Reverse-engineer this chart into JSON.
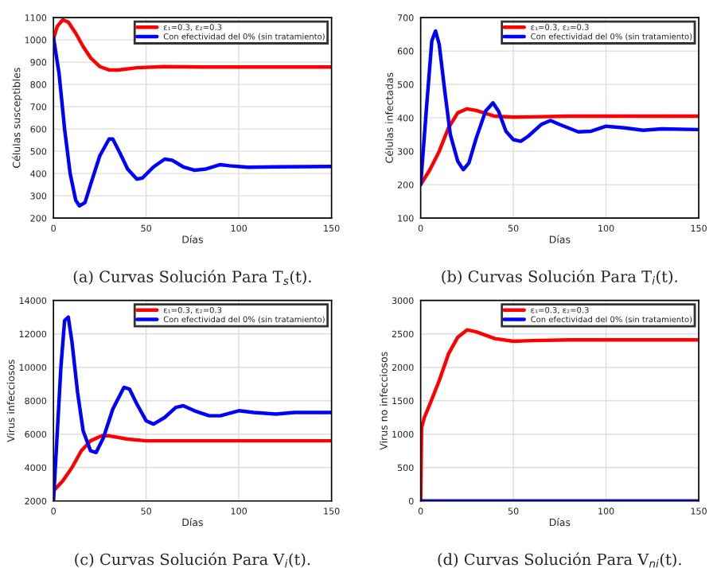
{
  "chart_data": [
    {
      "type": "line",
      "title": "(a) Curvas Solución Para T$_{s}$(t).",
      "xlabel": "Días",
      "ylabel": "Células susceptibles",
      "xlim": [
        0,
        150
      ],
      "xticks": [
        0,
        50,
        100,
        150
      ],
      "ylim": [
        200,
        1100
      ],
      "yticks": [
        200,
        300,
        400,
        500,
        600,
        700,
        800,
        900,
        1000,
        1100
      ],
      "grid": true,
      "legend": "top right",
      "marker": "none",
      "line_style": "solid",
      "series": [
        {
          "name": "ε₁=0.3, ε₂=0.3",
          "color": "#ff0000",
          "x": [
            0,
            2,
            5,
            8,
            12,
            16,
            20,
            25,
            30,
            35,
            45,
            60,
            80,
            150
          ],
          "values": [
            1005,
            1060,
            1090,
            1080,
            1030,
            970,
            920,
            880,
            865,
            865,
            875,
            880,
            878,
            878
          ]
        },
        {
          "name": "Con efectividad del 0% (sin tratamiento)",
          "color": "#0000ff",
          "x": [
            0,
            3,
            6,
            9,
            12,
            14,
            17,
            20,
            25,
            30,
            32,
            36,
            40,
            45,
            48,
            54,
            60,
            64,
            70,
            76,
            82,
            90,
            95,
            105,
            120,
            150
          ],
          "values": [
            1010,
            850,
            600,
            400,
            280,
            255,
            270,
            350,
            480,
            555,
            555,
            490,
            420,
            375,
            380,
            430,
            465,
            460,
            430,
            415,
            420,
            440,
            435,
            428,
            430,
            432
          ]
        }
      ]
    },
    {
      "type": "line",
      "title": "(b) Curvas Solución Para T$_{i}$(t).",
      "xlabel": "Días",
      "ylabel": "Células infectadas",
      "xlim": [
        0,
        150
      ],
      "xticks": [
        0,
        50,
        100,
        150
      ],
      "ylim": [
        100,
        700
      ],
      "yticks": [
        100,
        200,
        300,
        400,
        500,
        600,
        700
      ],
      "grid": true,
      "legend": "top right",
      "marker": "none",
      "line_style": "solid",
      "series": [
        {
          "name": "ε₁=0.3, ε₂=0.3",
          "color": "#ff0000",
          "x": [
            0,
            5,
            10,
            15,
            20,
            25,
            30,
            40,
            50,
            60,
            80,
            150
          ],
          "values": [
            200,
            245,
            300,
            370,
            415,
            427,
            422,
            405,
            402,
            403,
            405,
            405
          ]
        },
        {
          "name": "Con efectividad del 0% (sin tratamiento)",
          "color": "#0000ff",
          "x": [
            0,
            3,
            6,
            8,
            10,
            13,
            16,
            20,
            23,
            26,
            30,
            35,
            39,
            42,
            46,
            50,
            54,
            58,
            65,
            70,
            75,
            85,
            92,
            100,
            110,
            120,
            130,
            150
          ],
          "values": [
            200,
            420,
            630,
            660,
            620,
            480,
            350,
            270,
            245,
            265,
            340,
            420,
            445,
            420,
            360,
            335,
            330,
            345,
            380,
            392,
            380,
            358,
            360,
            375,
            370,
            363,
            367,
            365
          ]
        }
      ]
    },
    {
      "type": "line",
      "title": "(c) Curvas Solución Para V$_{i}$(t).",
      "xlabel": "Días",
      "ylabel": "Virus infecciosos",
      "xlim": [
        0,
        150
      ],
      "xticks": [
        0,
        50,
        100,
        150
      ],
      "ylim": [
        2000,
        14000
      ],
      "yticks": [
        2000,
        4000,
        6000,
        8000,
        10000,
        12000,
        14000
      ],
      "grid": true,
      "legend": "top right",
      "marker": "none",
      "line_style": "solid",
      "series": [
        {
          "name": "ε₁=0.3, ε₂=0.3",
          "color": "#ff0000",
          "x": [
            0,
            5,
            10,
            15,
            20,
            26,
            30,
            40,
            50,
            60,
            80,
            150
          ],
          "values": [
            2600,
            3200,
            4000,
            5000,
            5600,
            5900,
            5900,
            5700,
            5600,
            5600,
            5600,
            5600
          ]
        },
        {
          "name": "Con efectividad del 0% (sin tratamiento)",
          "color": "#0000ff",
          "x": [
            0,
            2,
            4,
            6,
            8,
            10,
            13,
            16,
            20,
            23,
            27,
            32,
            38,
            41,
            45,
            50,
            54,
            60,
            66,
            70,
            76,
            84,
            90,
            100,
            108,
            120,
            130,
            150
          ],
          "values": [
            2000,
            6000,
            10000,
            12800,
            13000,
            11500,
            8500,
            6200,
            5000,
            4900,
            5800,
            7500,
            8800,
            8700,
            7800,
            6800,
            6600,
            7000,
            7600,
            7700,
            7400,
            7100,
            7100,
            7400,
            7300,
            7200,
            7300,
            7300
          ]
        }
      ]
    },
    {
      "type": "line",
      "title": "(d) Curvas Solución Para V$_{ni}$(t).",
      "xlabel": "Días",
      "ylabel": "Virus no infecciosos",
      "xlim": [
        0,
        150
      ],
      "xticks": [
        0,
        50,
        100,
        150
      ],
      "ylim": [
        0,
        3000
      ],
      "yticks": [
        0,
        500,
        1000,
        1500,
        2000,
        2500,
        3000
      ],
      "grid": true,
      "legend": "top right",
      "marker": "none",
      "line_style": "solid",
      "series": [
        {
          "name": "ε₁=0.3, ε₂=0.3",
          "color": "#ff0000",
          "x": [
            0,
            0.5,
            2,
            5,
            10,
            15,
            20,
            25,
            30,
            40,
            50,
            60,
            80,
            150
          ],
          "values": [
            0,
            1100,
            1250,
            1450,
            1800,
            2200,
            2450,
            2560,
            2530,
            2430,
            2390,
            2400,
            2410,
            2410
          ]
        },
        {
          "name": "Con efectividad del 0% (sin tratamiento)",
          "color": "#0000ff",
          "x": [
            0,
            150
          ],
          "values": [
            0,
            0
          ]
        }
      ]
    }
  ]
}
